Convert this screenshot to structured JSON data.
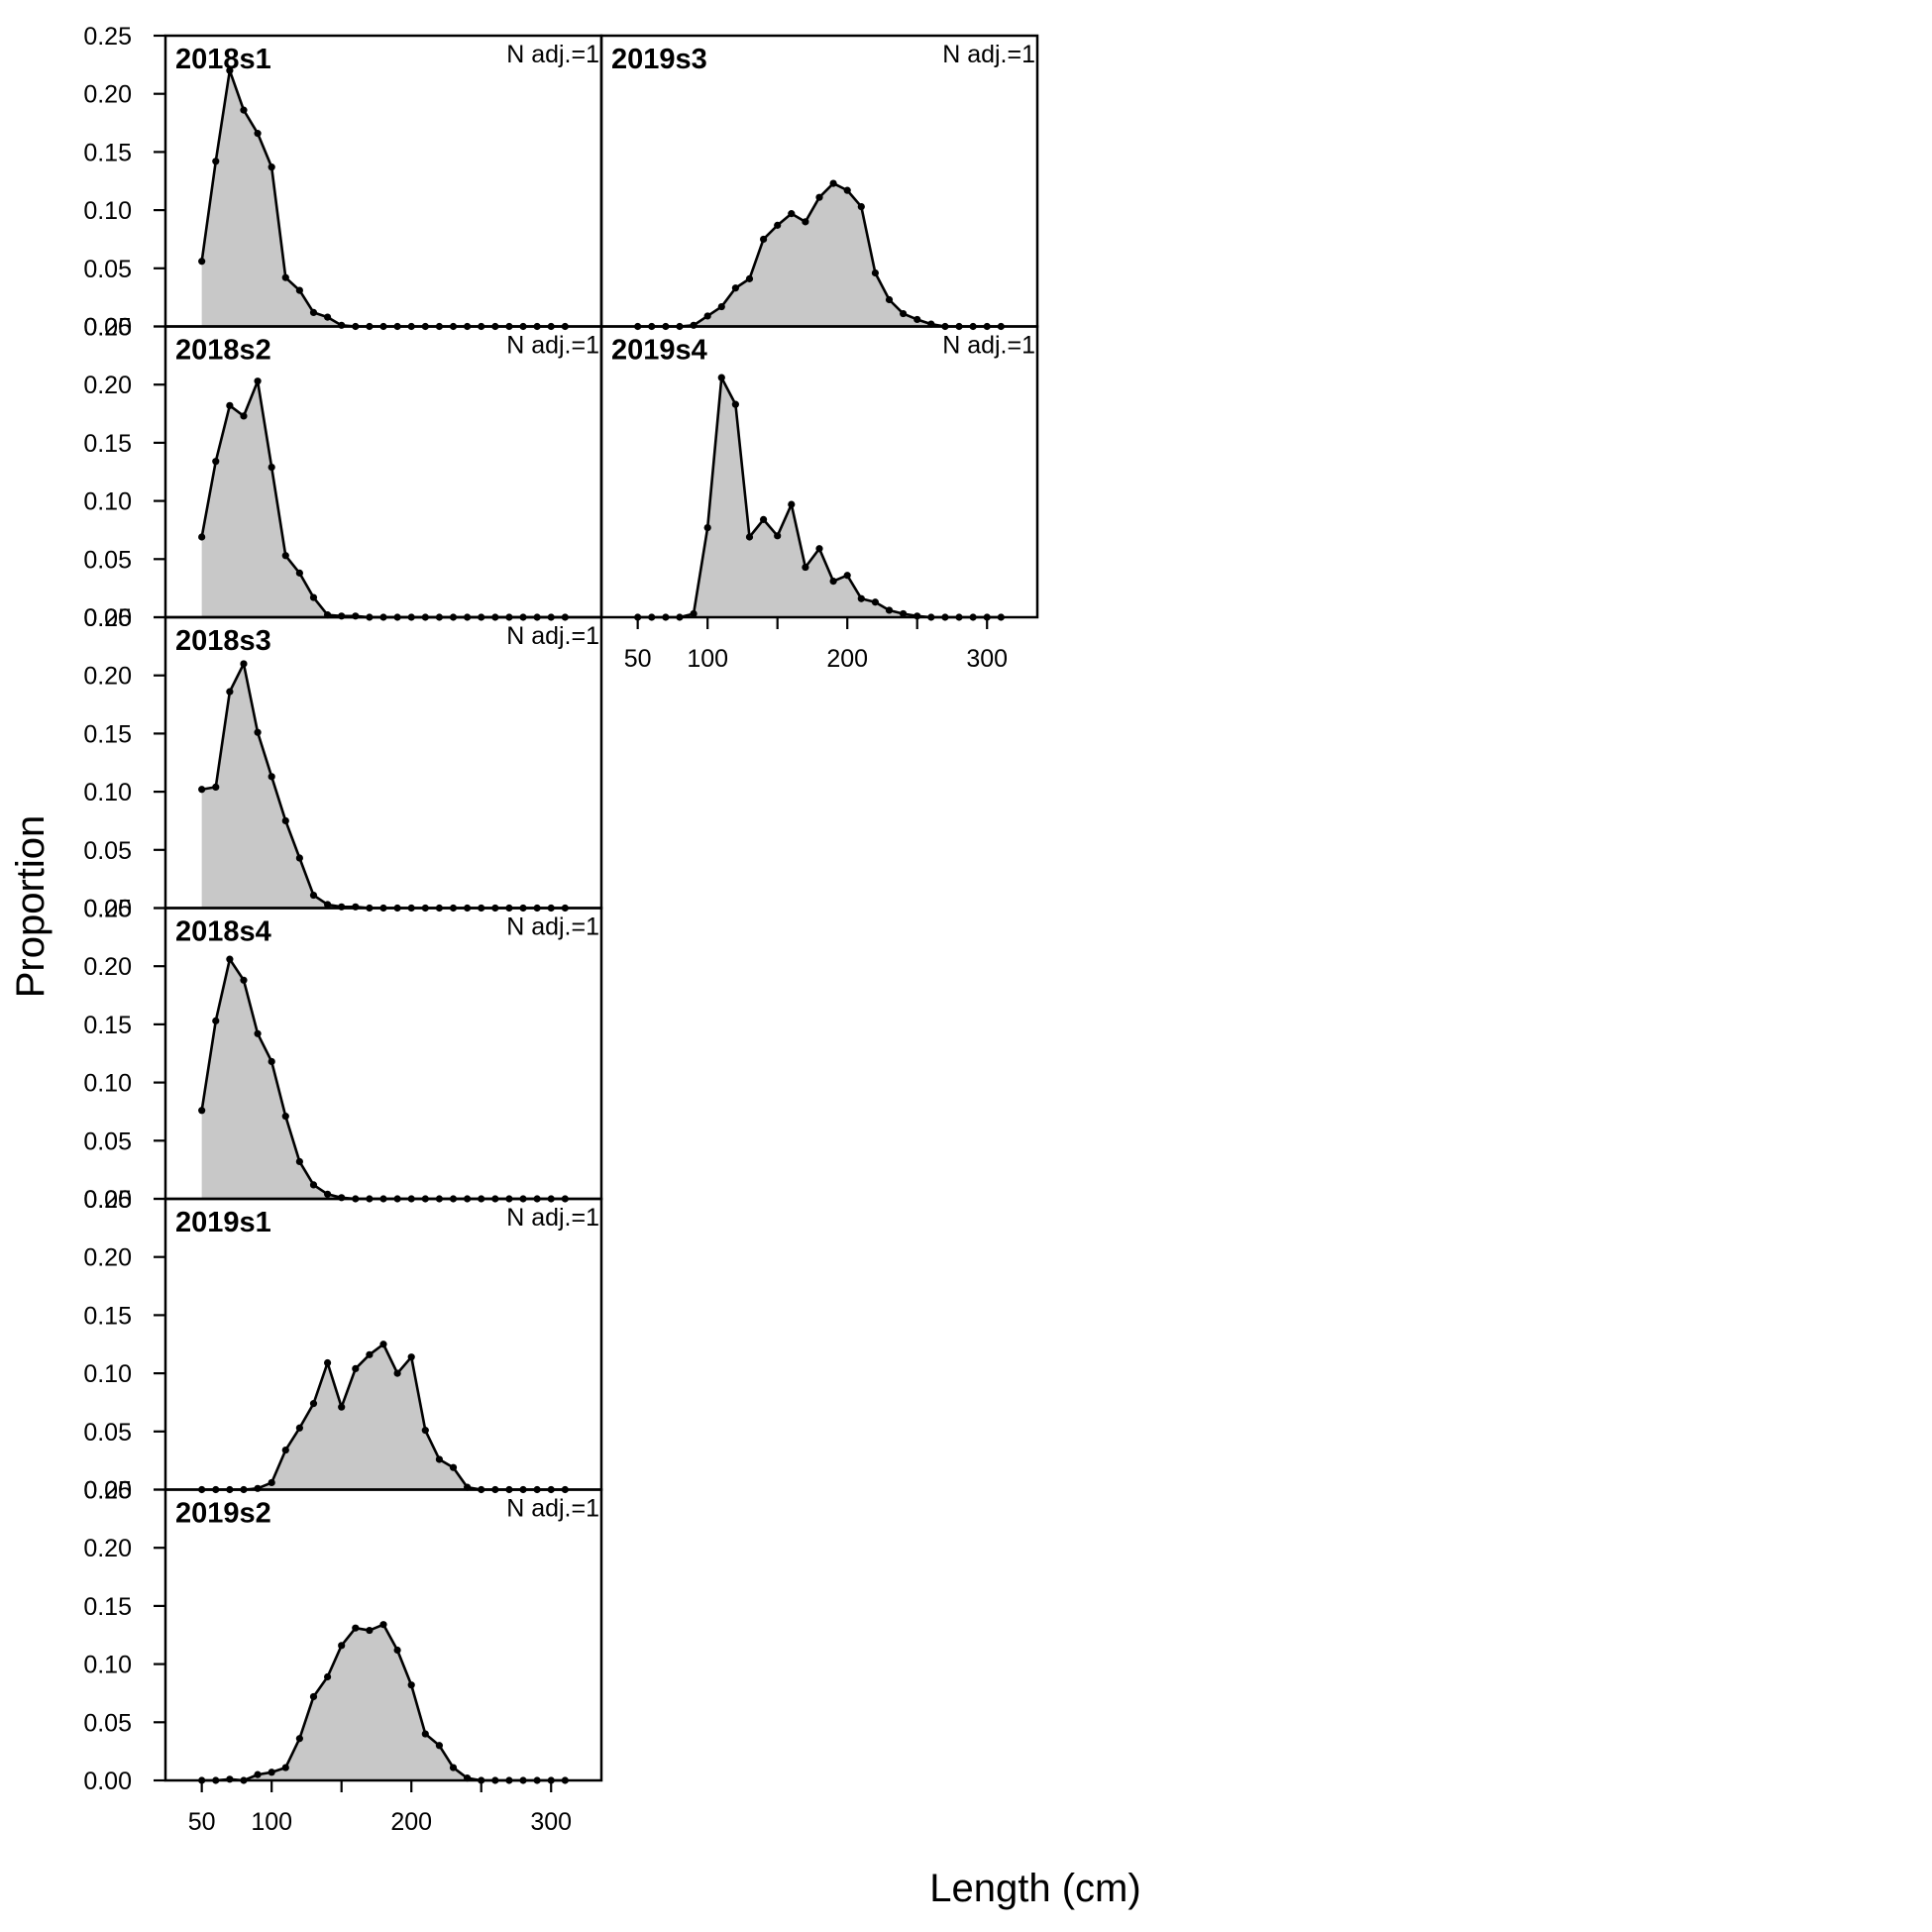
{
  "chart_data": {
    "type": "area",
    "xlabel": "Length (cm)",
    "ylabel": "Proportion",
    "xlim": [
      24,
      336
    ],
    "ylim": [
      0,
      0.25
    ],
    "xticks": [
      50,
      100,
      200,
      300
    ],
    "xticks_unlabeled": [
      150,
      250
    ],
    "yticks": [
      "0.00",
      "0.05",
      "0.10",
      "0.15",
      "0.20",
      "0.25"
    ],
    "x": [
      50,
      60,
      70,
      80,
      90,
      100,
      110,
      120,
      130,
      140,
      150,
      160,
      170,
      180,
      190,
      200,
      210,
      220,
      230,
      240,
      250,
      260,
      270,
      280,
      290,
      300,
      310
    ],
    "panels": [
      {
        "title": "2018s1",
        "note": "N adj.=1",
        "values": [
          0.056,
          0.142,
          0.22,
          0.186,
          0.166,
          0.137,
          0.042,
          0.031,
          0.012,
          0.008,
          0.001,
          0,
          0,
          0,
          0,
          0,
          0,
          0,
          0,
          0,
          0,
          0,
          0,
          0,
          0,
          0,
          0
        ]
      },
      {
        "title": "2018s2",
        "note": "N adj.=1",
        "values": [
          0.069,
          0.134,
          0.182,
          0.173,
          0.203,
          0.129,
          0.053,
          0.038,
          0.017,
          0.002,
          0.001,
          0.001,
          0,
          0,
          0,
          0,
          0,
          0,
          0,
          0,
          0,
          0,
          0,
          0,
          0,
          0,
          0
        ]
      },
      {
        "title": "2018s3",
        "note": "N adj.=1",
        "values": [
          0.102,
          0.104,
          0.186,
          0.21,
          0.151,
          0.113,
          0.075,
          0.043,
          0.011,
          0.003,
          0.001,
          0.001,
          0,
          0,
          0,
          0,
          0,
          0,
          0,
          0,
          0,
          0,
          0,
          0,
          0,
          0,
          0
        ]
      },
      {
        "title": "2018s4",
        "note": "N adj.=1",
        "values": [
          0.076,
          0.153,
          0.206,
          0.188,
          0.142,
          0.118,
          0.071,
          0.032,
          0.012,
          0.004,
          0.001,
          0,
          0,
          0,
          0,
          0,
          0,
          0,
          0,
          0,
          0,
          0,
          0,
          0,
          0,
          0,
          0
        ]
      },
      {
        "title": "2019s1",
        "note": "N adj.=1",
        "values": [
          0,
          0,
          0,
          0,
          0.001,
          0.006,
          0.034,
          0.053,
          0.074,
          0.109,
          0.071,
          0.104,
          0.116,
          0.125,
          0.1,
          0.114,
          0.051,
          0.026,
          0.019,
          0.002,
          0,
          0,
          0,
          0,
          0,
          0,
          0
        ]
      },
      {
        "title": "2019s2",
        "note": "N adj.=1",
        "values": [
          0,
          0,
          0.001,
          0,
          0.005,
          0.007,
          0.011,
          0.036,
          0.072,
          0.089,
          0.116,
          0.131,
          0.129,
          0.134,
          0.112,
          0.082,
          0.04,
          0.03,
          0.011,
          0.002,
          0,
          0,
          0,
          0,
          0,
          0,
          0
        ]
      },
      {
        "title": "2019s3",
        "note": "N adj.=1",
        "values": [
          0,
          0,
          0,
          0,
          0.001,
          0.009,
          0.017,
          0.033,
          0.041,
          0.075,
          0.087,
          0.097,
          0.09,
          0.111,
          0.123,
          0.117,
          0.103,
          0.046,
          0.023,
          0.011,
          0.006,
          0.002,
          0,
          0,
          0,
          0,
          0
        ]
      },
      {
        "title": "2019s4",
        "note": "N adj.=1",
        "values": [
          0,
          0,
          0,
          0,
          0.003,
          0.077,
          0.206,
          0.183,
          0.069,
          0.084,
          0.07,
          0.097,
          0.043,
          0.059,
          0.031,
          0.036,
          0.016,
          0.013,
          0.006,
          0.003,
          0.001,
          0,
          0,
          0,
          0,
          0,
          0
        ]
      }
    ]
  }
}
